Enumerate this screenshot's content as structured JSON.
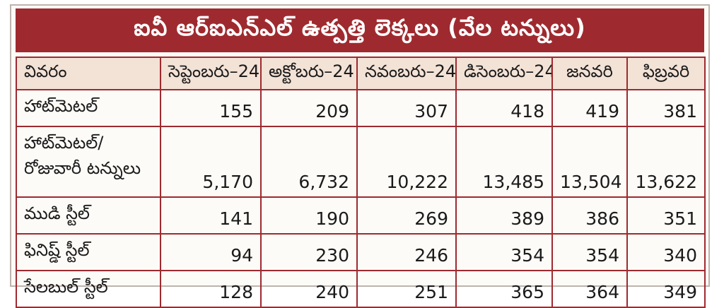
{
  "title": "ఐవీ ఆర్‌ఐఎన్‌ఎల్ ఉత్పత్తి లెక్కలు (వేల టన్నులు)",
  "table": {
    "headers": [
      "వివరం",
      "సెప్టెంబరు–24",
      "అక్టోబరు–24",
      "నవంబరు–24",
      "డిసెంబరు–24",
      "జనవరి",
      "ఫిబ్రవరి"
    ],
    "rows": [
      {
        "label": [
          "హాట్‌మెటల్"
        ],
        "values": [
          "155",
          "209",
          "307",
          "418",
          "419",
          "381"
        ]
      },
      {
        "label": [
          "హాట్‌మెటల్/",
          "రోజువారీ టన్నులు"
        ],
        "values": [
          "5,170",
          "6,732",
          "10,222",
          "13,485",
          "13,504",
          "13,622"
        ]
      },
      {
        "label": [
          "ముడి స్టీల్"
        ],
        "values": [
          "141",
          "190",
          "269",
          "389",
          "386",
          "351"
        ]
      },
      {
        "label": [
          "ఫినిష్డ్ స్టీల్"
        ],
        "values": [
          "94",
          "230",
          "246",
          "354",
          "354",
          "340"
        ]
      },
      {
        "label": [
          "సేలబుల్ స్టీల్"
        ],
        "values": [
          "128",
          "240",
          "251",
          "365",
          "364",
          "349"
        ]
      }
    ]
  },
  "colors": {
    "title_bg": "#9e2a2f",
    "header_bg": "#f3e2d6",
    "border": "#9e2a2f"
  }
}
